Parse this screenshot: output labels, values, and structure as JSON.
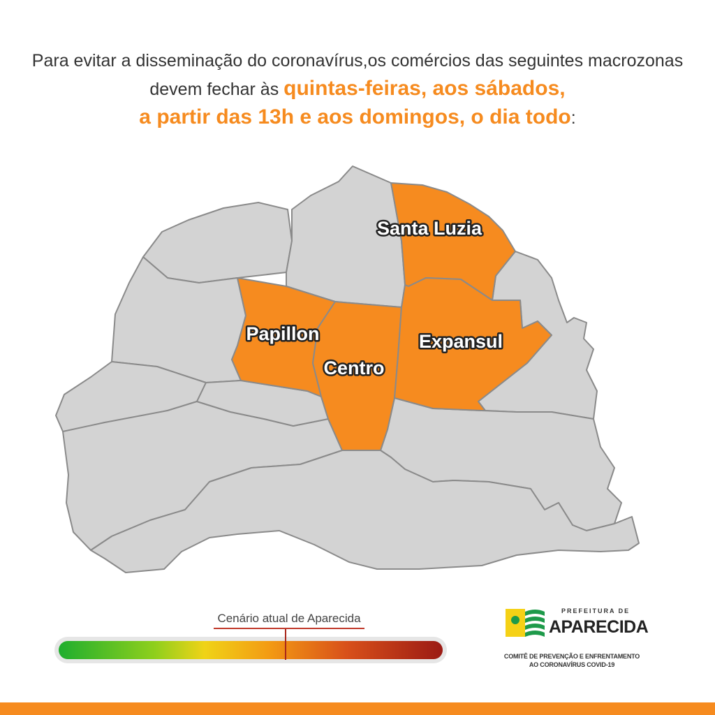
{
  "headline": {
    "part1": "Para evitar a disseminação do coronavírus,os comércios das seguintes macrozonas devem fechar às ",
    "highlight1": "quintas-feiras, aos sábados,",
    "highlight2": "a partir das 13h e aos domingos, o dia todo",
    "end": ":"
  },
  "map": {
    "regions": [
      {
        "name": "Santa Luzia",
        "status": "closed",
        "color": "#f68b1f"
      },
      {
        "name": "Papillon",
        "status": "closed",
        "color": "#f68b1f"
      },
      {
        "name": "Centro",
        "status": "closed",
        "color": "#f68b1f"
      },
      {
        "name": "Expansul",
        "status": "closed",
        "color": "#f68b1f"
      }
    ],
    "other_regions_color": "#d3d3d3",
    "border_color": "#8a8a8a"
  },
  "scenario": {
    "label": "Cenário atual de Aparecida",
    "level_fraction": 0.59,
    "scale_colors": [
      "#1fae2e",
      "#f0d317",
      "#f39a13",
      "#9b1a14"
    ]
  },
  "logo": {
    "top_text": "PREFEITURA DE",
    "main_text": "APARECIDA",
    "committee_line1": "COMITÊ DE PREVENÇÃO E ENFRENTAMENTO",
    "committee_line2": "AO CORONAVÍRUS COVID-19"
  },
  "colors": {
    "accent": "#f68b1f",
    "text": "#333333"
  }
}
